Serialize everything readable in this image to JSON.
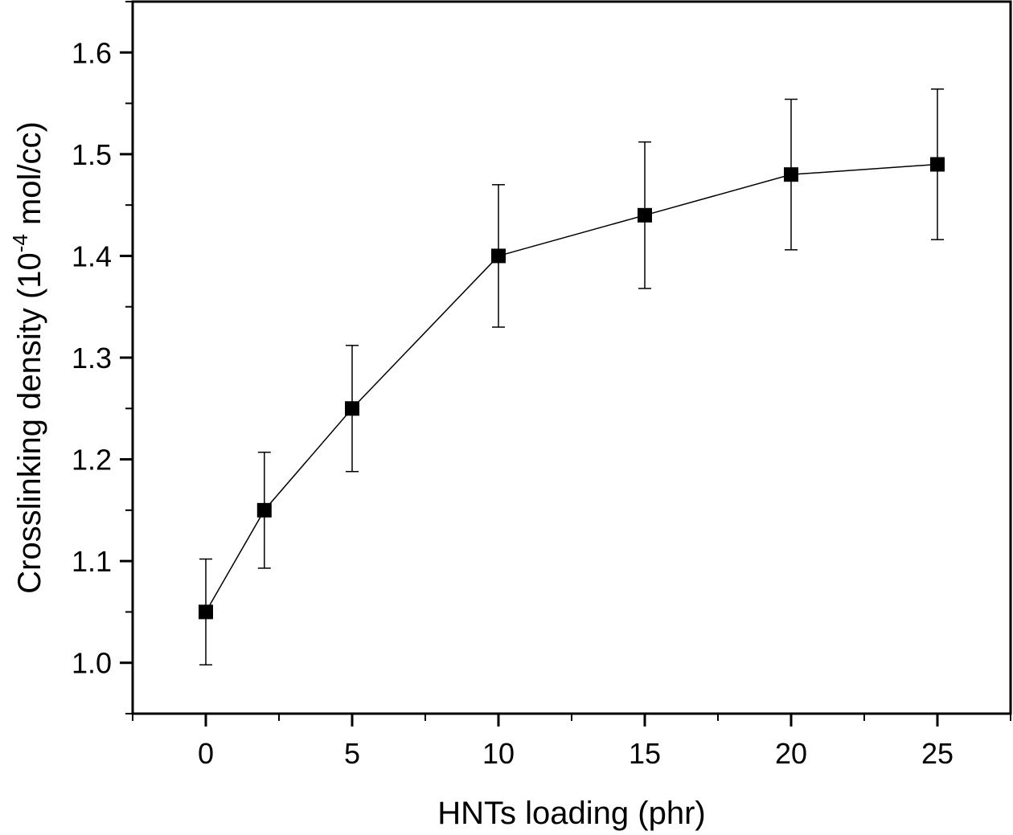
{
  "chart_data": {
    "type": "line",
    "title": "",
    "xlabel": "HNTs loading (phr)",
    "ylabel_main": "Crosslinking density (10",
    "ylabel_sup": "-4",
    "ylabel_tail": " mol/cc)",
    "xlim": [
      -2.5,
      27.5
    ],
    "ylim": [
      0.95,
      1.65
    ],
    "xticks": [
      0,
      5,
      10,
      15,
      20,
      25
    ],
    "xtick_labels": [
      "0",
      "5",
      "10",
      "15",
      "20",
      "25"
    ],
    "yticks": [
      1.0,
      1.1,
      1.2,
      1.3,
      1.4,
      1.5,
      1.6
    ],
    "ytick_labels": [
      "1.0",
      "1.1",
      "1.2",
      "1.3",
      "1.4",
      "1.5",
      "1.6"
    ],
    "grid": false,
    "series": [
      {
        "name": "Crosslinking density",
        "x": [
          0,
          2,
          5,
          10,
          15,
          20,
          25
        ],
        "y": [
          1.05,
          1.15,
          1.25,
          1.4,
          1.44,
          1.48,
          1.49
        ],
        "error": [
          0.052,
          0.057,
          0.062,
          0.07,
          0.072,
          0.074,
          0.074
        ],
        "color": "#000000",
        "marker": "square"
      }
    ]
  }
}
